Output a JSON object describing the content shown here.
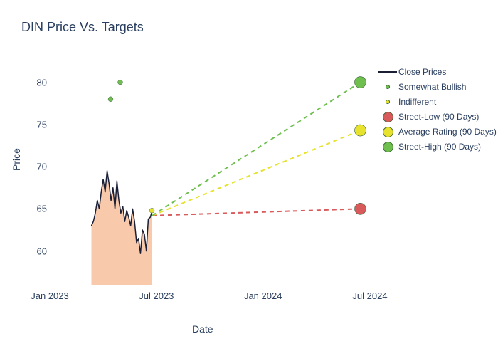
{
  "title": "DIN Price Vs. Targets",
  "x_axis": {
    "label": "Date",
    "ticks": [
      {
        "label": "Jan 2023",
        "t": 0.0
      },
      {
        "label": "Jul 2023",
        "t": 0.333
      },
      {
        "label": "Jan 2024",
        "t": 0.666
      },
      {
        "label": "Jul 2024",
        "t": 1.0
      }
    ],
    "range_pad": 0.05
  },
  "y_axis": {
    "label": "Price",
    "ticks": [
      60,
      65,
      70,
      75,
      80
    ],
    "ylim": [
      56,
      83
    ]
  },
  "colors": {
    "background": "#ffffff",
    "text": "#2a3f5f",
    "close_line": "#1a1f36",
    "area_fill": "#f5b78e",
    "bullish": "#6fbf4f",
    "indifferent": "#e6e22e",
    "street_low": "#d95a5a",
    "street_avg": "#e6e22e",
    "street_high": "#6fbf4f",
    "marker_border": "#3a5f3a"
  },
  "close_prices": {
    "start_t": 0.13,
    "end_t": 0.32,
    "values": [
      63,
      63.5,
      64.5,
      66,
      65,
      67,
      68.5,
      67,
      69.5,
      68,
      66,
      67.5,
      65,
      68.3,
      66,
      64.5,
      65.3,
      63.5,
      64.8,
      64,
      63,
      65,
      63.5,
      61,
      61.5,
      59.7,
      62.5,
      62,
      60,
      63.8,
      64,
      64.8
    ]
  },
  "bullish_points": [
    {
      "t": 0.22,
      "price": 80
    },
    {
      "t": 0.19,
      "price": 78
    }
  ],
  "indifferent_points": [
    {
      "t": 0.319,
      "price": 64.8
    }
  ],
  "target_start": {
    "t": 0.32,
    "price": 64.2
  },
  "targets": [
    {
      "key": "low",
      "label": "Street-Low (90 Days)",
      "price": 65,
      "end_t": 0.97,
      "color": "#d95a5a"
    },
    {
      "key": "avg",
      "label": "Average Rating (90 Days)",
      "price": 74.3,
      "end_t": 0.97,
      "color": "#e6e22e"
    },
    {
      "key": "high",
      "label": "Street-High (90 Days)",
      "price": 80,
      "end_t": 0.97,
      "color": "#6fbf4f"
    }
  ],
  "legend": [
    {
      "type": "line",
      "label": "Close Prices",
      "color": "#1a1f36"
    },
    {
      "type": "marker_sm",
      "label": "Somewhat Bullish",
      "color": "#6fbf4f"
    },
    {
      "type": "marker_sm",
      "label": "Indifferent",
      "color": "#e6e22e"
    },
    {
      "type": "marker_lg",
      "label": "Street-Low (90 Days)",
      "color": "#d95a5a"
    },
    {
      "type": "marker_lg",
      "label": "Average Rating (90 Days)",
      "color": "#e6e22e"
    },
    {
      "type": "marker_lg",
      "label": "Street-High (90 Days)",
      "color": "#6fbf4f"
    }
  ],
  "dash_pattern": "6,5",
  "area_baseline_price": 56,
  "marker_radius_sm": 3.4,
  "marker_radius_lg": 8,
  "line_width": 1.5,
  "dash_width": 2
}
